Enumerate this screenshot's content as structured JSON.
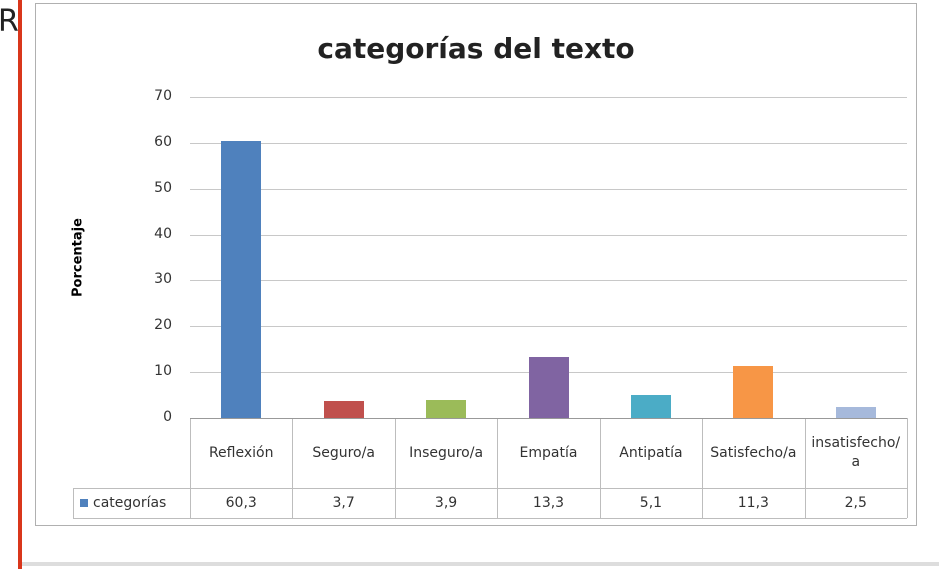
{
  "fragment": "R",
  "chart_data": {
    "type": "bar",
    "title": "categorías del texto",
    "ylabel": "Porcentaje",
    "categories": [
      "Reflexión",
      "Seguro/a",
      "Inseguro/a",
      "Empatía",
      "Antipatía",
      "Satisfecho/a",
      "insatisfecho/a"
    ],
    "series": [
      {
        "name": "categorías",
        "color": "#4f81bd",
        "values": [
          60.3,
          3.7,
          3.9,
          13.3,
          5.1,
          11.3,
          2.5
        ],
        "value_labels": [
          "60,3",
          "3,7",
          "3,9",
          "13,3",
          "5,1",
          "11,3",
          "2,5"
        ]
      }
    ],
    "colors": [
      "#4f81bd",
      "#c0504d",
      "#9bbb59",
      "#8064a2",
      "#4bacc6",
      "#f79646",
      "#a6b9db"
    ],
    "ylim": [
      0,
      70
    ],
    "yticks": [
      0,
      10,
      20,
      30,
      40,
      50,
      60,
      70
    ],
    "grid": true,
    "data_table": true
  }
}
